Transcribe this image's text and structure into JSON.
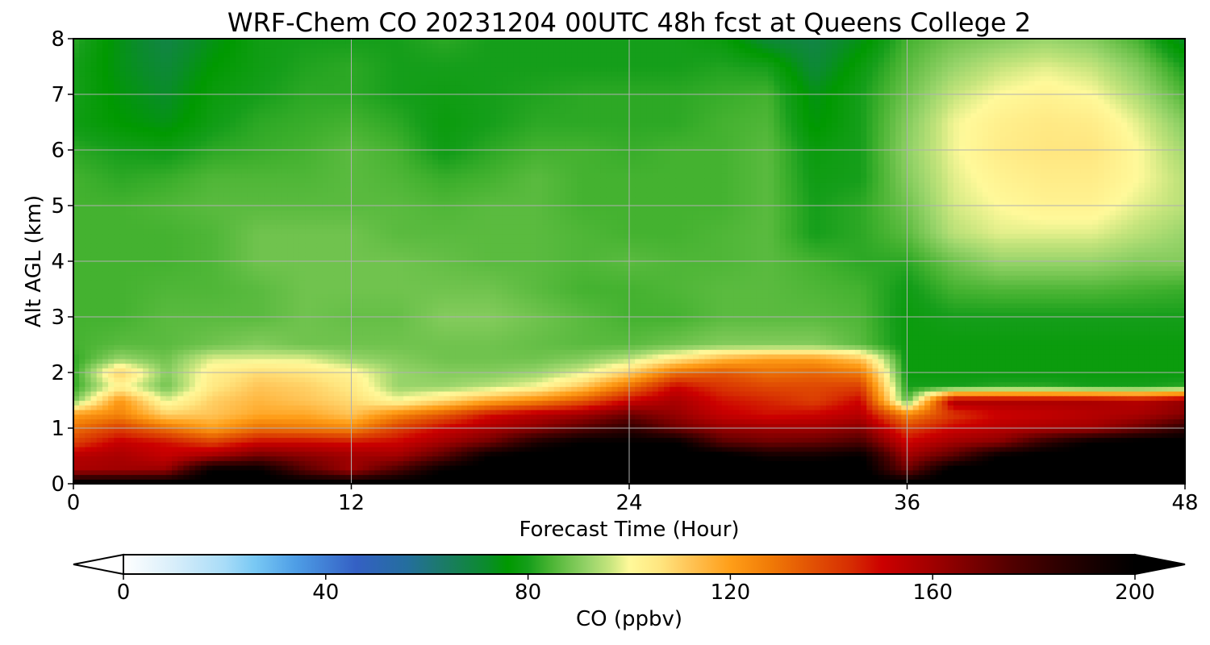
{
  "chart_data": {
    "type": "heatmap",
    "title": "WRF-Chem CO  20231204 00UTC 48h fcst at Queens College 2",
    "xlabel": "Forecast Time (Hour)",
    "ylabel": "Alt AGL (km)",
    "xlim": [
      0,
      48
    ],
    "ylim": [
      0,
      8
    ],
    "x_ticks": [
      0,
      12,
      24,
      36,
      48
    ],
    "y_ticks": [
      0,
      1,
      2,
      3,
      4,
      5,
      6,
      7,
      8
    ],
    "grid": true,
    "x_hours": [
      0,
      2,
      4,
      6,
      8,
      10,
      12,
      14,
      16,
      18,
      20,
      22,
      24,
      26,
      28,
      30,
      32,
      34,
      36,
      38,
      40,
      42,
      44,
      46,
      48
    ],
    "y_km": [
      0,
      0.25,
      0.5,
      0.75,
      1.0,
      1.25,
      1.5,
      1.75,
      2.0,
      2.25,
      2.5,
      3.0,
      3.5,
      4.0,
      4.5,
      5.0,
      5.5,
      6.0,
      6.5,
      7.0,
      7.5,
      8.0
    ],
    "values_ppbv": [
      [
        205,
        205,
        205,
        205,
        205,
        205,
        205,
        205,
        205,
        205,
        205,
        205,
        205,
        205,
        205,
        205,
        205,
        205,
        205,
        205,
        205,
        205,
        205,
        205,
        205
      ],
      [
        158,
        160,
        162,
        200,
        200,
        175,
        160,
        178,
        200,
        205,
        205,
        205,
        205,
        205,
        205,
        205,
        205,
        205,
        170,
        205,
        205,
        205,
        205,
        205,
        205
      ],
      [
        155,
        158,
        152,
        160,
        170,
        165,
        160,
        160,
        175,
        200,
        205,
        205,
        205,
        205,
        205,
        195,
        195,
        200,
        160,
        175,
        200,
        205,
        205,
        205,
        205
      ],
      [
        140,
        152,
        148,
        140,
        150,
        150,
        148,
        150,
        160,
        170,
        190,
        200,
        200,
        200,
        175,
        170,
        172,
        178,
        150,
        160,
        165,
        185,
        200,
        205,
        205
      ],
      [
        130,
        140,
        130,
        120,
        130,
        128,
        125,
        140,
        150,
        158,
        165,
        175,
        185,
        170,
        162,
        160,
        160,
        165,
        140,
        150,
        155,
        158,
        160,
        170,
        185
      ],
      [
        120,
        126,
        110,
        112,
        118,
        118,
        112,
        125,
        135,
        148,
        155,
        160,
        170,
        162,
        152,
        148,
        150,
        155,
        125,
        142,
        150,
        152,
        155,
        158,
        165
      ],
      [
        88,
        122,
        98,
        110,
        115,
        112,
        108,
        100,
        108,
        118,
        125,
        135,
        150,
        158,
        148,
        145,
        140,
        150,
        85,
        158,
        158,
        158,
        158,
        155,
        162
      ],
      [
        82,
        102,
        88,
        105,
        112,
        110,
        105,
        92,
        92,
        95,
        100,
        112,
        130,
        150,
        142,
        138,
        138,
        140,
        80,
        80,
        82,
        82,
        80,
        80,
        82
      ],
      [
        82,
        110,
        90,
        103,
        108,
        106,
        102,
        92,
        90,
        90,
        92,
        98,
        110,
        130,
        135,
        130,
        132,
        128,
        78,
        78,
        78,
        78,
        78,
        78,
        78
      ],
      [
        82,
        92,
        88,
        98,
        98,
        98,
        92,
        90,
        88,
        88,
        88,
        90,
        95,
        105,
        115,
        120,
        120,
        112,
        78,
        78,
        78,
        78,
        78,
        78,
        78
      ],
      [
        84,
        86,
        86,
        88,
        90,
        88,
        88,
        88,
        88,
        88,
        87,
        86,
        86,
        88,
        90,
        90,
        90,
        86,
        78,
        78,
        78,
        78,
        78,
        78,
        78
      ],
      [
        84,
        84,
        86,
        86,
        86,
        88,
        87,
        87,
        90,
        90,
        88,
        86,
        84,
        84,
        86,
        86,
        86,
        85,
        78,
        80,
        80,
        80,
        80,
        80,
        80
      ],
      [
        84,
        84,
        85,
        85,
        86,
        88,
        88,
        88,
        88,
        88,
        86,
        84,
        84,
        85,
        86,
        86,
        85,
        84,
        79,
        84,
        85,
        85,
        85,
        84,
        83
      ],
      [
        84,
        84,
        84,
        85,
        88,
        88,
        88,
        88,
        87,
        86,
        86,
        85,
        86,
        85,
        85,
        86,
        84,
        82,
        82,
        88,
        92,
        92,
        92,
        90,
        90
      ],
      [
        84,
        84,
        84,
        85,
        88,
        88,
        88,
        86,
        86,
        86,
        86,
        85,
        84,
        84,
        85,
        86,
        80,
        82,
        86,
        95,
        98,
        98,
        98,
        95,
        92
      ],
      [
        84,
        84,
        85,
        86,
        86,
        86,
        86,
        86,
        85,
        86,
        86,
        84,
        84,
        84,
        84,
        86,
        80,
        82,
        88,
        97,
        100,
        102,
        102,
        98,
        95
      ],
      [
        84,
        82,
        83,
        85,
        85,
        85,
        86,
        85,
        83,
        84,
        86,
        84,
        84,
        84,
        84,
        86,
        79,
        80,
        90,
        98,
        102,
        104,
        104,
        100,
        95
      ],
      [
        82,
        80,
        79,
        82,
        83,
        84,
        86,
        84,
        79,
        82,
        84,
        84,
        83,
        84,
        84,
        86,
        78,
        80,
        91,
        99,
        104,
        106,
        106,
        100,
        93
      ],
      [
        79,
        76,
        74,
        79,
        82,
        83,
        84,
        82,
        78,
        80,
        82,
        82,
        82,
        82,
        84,
        85,
        75,
        80,
        90,
        99,
        103,
        105,
        104,
        98,
        90
      ],
      [
        80,
        75,
        72,
        78,
        80,
        82,
        82,
        80,
        79,
        80,
        81,
        82,
        82,
        82,
        83,
        84,
        74,
        80,
        88,
        96,
        100,
        102,
        100,
        94,
        85
      ],
      [
        80,
        74,
        70,
        76,
        79,
        81,
        82,
        80,
        80,
        80,
        80,
        80,
        80,
        80,
        81,
        80,
        70,
        78,
        86,
        92,
        96,
        98,
        96,
        90,
        80
      ],
      [
        82,
        74,
        68,
        74,
        79,
        80,
        80,
        80,
        82,
        80,
        80,
        80,
        80,
        80,
        78,
        70,
        68,
        74,
        84,
        88,
        90,
        92,
        90,
        84,
        72
      ]
    ],
    "colorbar": {
      "label": "CO  (ppbv)",
      "min": 0,
      "max": 200,
      "ticks": [
        0,
        40,
        80,
        120,
        160,
        200
      ],
      "extend": "both",
      "colors": [
        [
          0,
          "#ffffff"
        ],
        [
          10,
          "#d8eefa"
        ],
        [
          20,
          "#a8dcf8"
        ],
        [
          26,
          "#78c8f4"
        ],
        [
          34,
          "#4e9ee6"
        ],
        [
          46,
          "#3460c4"
        ],
        [
          56,
          "#246e9e"
        ],
        [
          64,
          "#1a7c62"
        ],
        [
          72,
          "#0a8c2a"
        ],
        [
          76,
          "#009900"
        ],
        [
          80,
          "#159e1a"
        ],
        [
          84,
          "#44b230"
        ],
        [
          88,
          "#70c34e"
        ],
        [
          92,
          "#98d46a"
        ],
        [
          96,
          "#c4e47c"
        ],
        [
          100,
          "#fff99a"
        ],
        [
          106,
          "#ffe680"
        ],
        [
          112,
          "#ffc456"
        ],
        [
          120,
          "#ff9e18"
        ],
        [
          128,
          "#f07a06"
        ],
        [
          136,
          "#e25204"
        ],
        [
          144,
          "#d62c02"
        ],
        [
          150,
          "#cc0000"
        ],
        [
          160,
          "#a00000"
        ],
        [
          168,
          "#780000"
        ],
        [
          176,
          "#500000"
        ],
        [
          186,
          "#2a0000"
        ],
        [
          194,
          "#100000"
        ],
        [
          200,
          "#000000"
        ]
      ]
    }
  }
}
